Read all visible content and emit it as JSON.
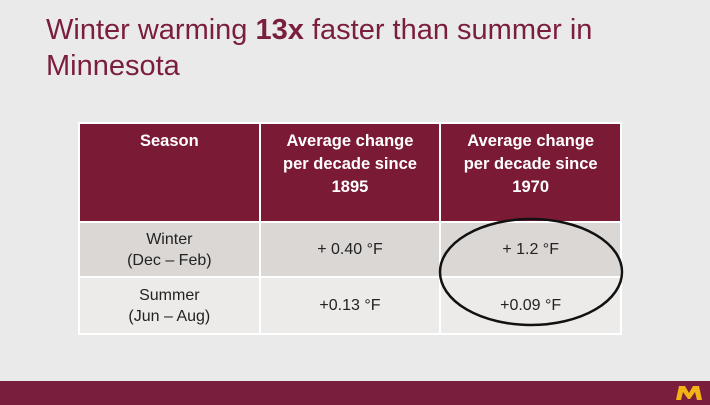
{
  "title": {
    "before": "Winter warming ",
    "bold": "13x",
    "after": " faster than summer in Minnesota"
  },
  "table": {
    "header": [
      [
        "Season"
      ],
      [
        "Average change",
        "per decade since",
        "1895"
      ],
      [
        "Average change",
        "per decade since",
        "1970"
      ]
    ],
    "rows": [
      [
        [
          "Winter",
          "(Dec – Feb)"
        ],
        [
          "+ 0.40 °F"
        ],
        [
          "+ 1.2 °F"
        ]
      ],
      [
        [
          "Summer",
          "(Jun – Aug)"
        ],
        [
          "+0.13 °F"
        ],
        [
          "+0.09 °F"
        ]
      ]
    ]
  }
}
